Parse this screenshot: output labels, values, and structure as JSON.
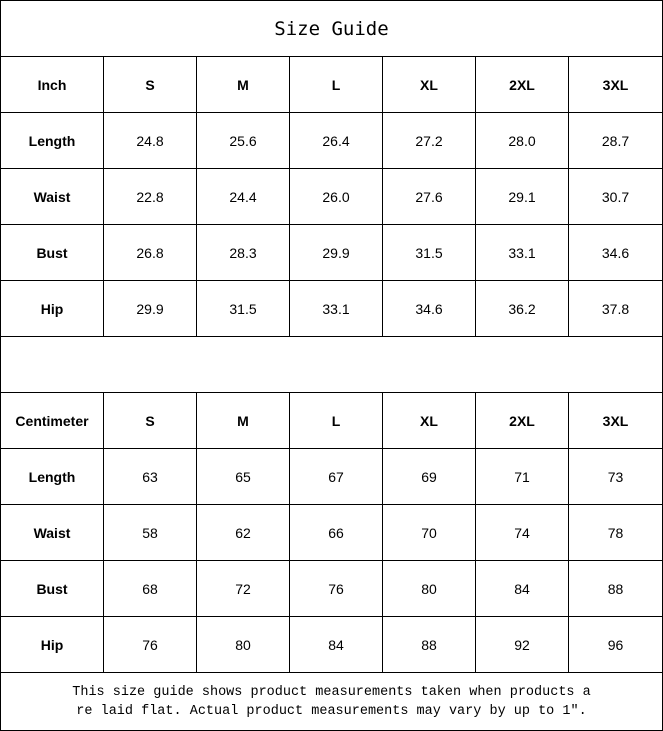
{
  "title": "Size Guide",
  "inch": {
    "header": [
      "Inch",
      "S",
      "M",
      "L",
      "XL",
      "2XL",
      "3XL"
    ],
    "rows": [
      [
        "Length",
        "24.8",
        "25.6",
        "26.4",
        "27.2",
        "28.0",
        "28.7"
      ],
      [
        "Waist",
        "22.8",
        "24.4",
        "26.0",
        "27.6",
        "29.1",
        "30.7"
      ],
      [
        "Bust",
        "26.8",
        "28.3",
        "29.9",
        "31.5",
        "33.1",
        "34.6"
      ],
      [
        "Hip",
        "29.9",
        "31.5",
        "33.1",
        "34.6",
        "36.2",
        "37.8"
      ]
    ]
  },
  "cm": {
    "header": [
      "Centimeter",
      "S",
      "M",
      "L",
      "XL",
      "2XL",
      "3XL"
    ],
    "rows": [
      [
        "Length",
        "63",
        "65",
        "67",
        "69",
        "71",
        "73"
      ],
      [
        "Waist",
        "58",
        "62",
        "66",
        "70",
        "74",
        "78"
      ],
      [
        "Bust",
        "68",
        "72",
        "76",
        "80",
        "84",
        "88"
      ],
      [
        "Hip",
        "76",
        "80",
        "84",
        "88",
        "92",
        "96"
      ]
    ]
  },
  "footer": {
    "line1": "This size guide shows product measurements taken when products a",
    "line2": "re laid flat. Actual product measurements may vary by up to 1″."
  }
}
